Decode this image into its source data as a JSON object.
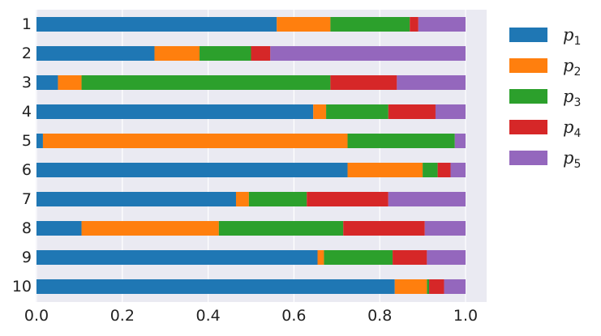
{
  "chart_data": {
    "type": "bar",
    "orientation": "horizontal",
    "stacked": true,
    "categories": [
      "1",
      "2",
      "3",
      "4",
      "5",
      "6",
      "7",
      "8",
      "9",
      "10"
    ],
    "series": [
      {
        "name": "p",
        "subscript": "1",
        "color": "#1f77b4",
        "values": [
          0.56,
          0.275,
          0.05,
          0.645,
          0.015,
          0.725,
          0.465,
          0.105,
          0.655,
          0.835
        ]
      },
      {
        "name": "p",
        "subscript": "2",
        "color": "#ff7f0e",
        "values": [
          0.125,
          0.105,
          0.055,
          0.03,
          0.71,
          0.175,
          0.03,
          0.32,
          0.015,
          0.075
        ]
      },
      {
        "name": "p",
        "subscript": "3",
        "color": "#2ca02c",
        "values": [
          0.185,
          0.12,
          0.58,
          0.145,
          0.25,
          0.035,
          0.135,
          0.29,
          0.16,
          0.005
        ]
      },
      {
        "name": "p",
        "subscript": "4",
        "color": "#d62728",
        "values": [
          0.02,
          0.045,
          0.155,
          0.11,
          0.0,
          0.03,
          0.19,
          0.19,
          0.08,
          0.035
        ]
      },
      {
        "name": "p",
        "subscript": "5",
        "color": "#9467bd",
        "values": [
          0.11,
          0.455,
          0.16,
          0.07,
          0.025,
          0.035,
          0.18,
          0.095,
          0.09,
          0.05
        ]
      }
    ],
    "xlim": [
      0.0,
      1.0
    ],
    "xticks": [
      0.0,
      0.2,
      0.4,
      0.6,
      0.8,
      1.0
    ],
    "xtick_labels": [
      "0.0",
      "0.2",
      "0.4",
      "0.6",
      "0.8",
      "1.0"
    ],
    "title": "",
    "xlabel": "",
    "ylabel": "",
    "grid": true,
    "legend_position": "right",
    "background_color": "#eaeaf2"
  }
}
